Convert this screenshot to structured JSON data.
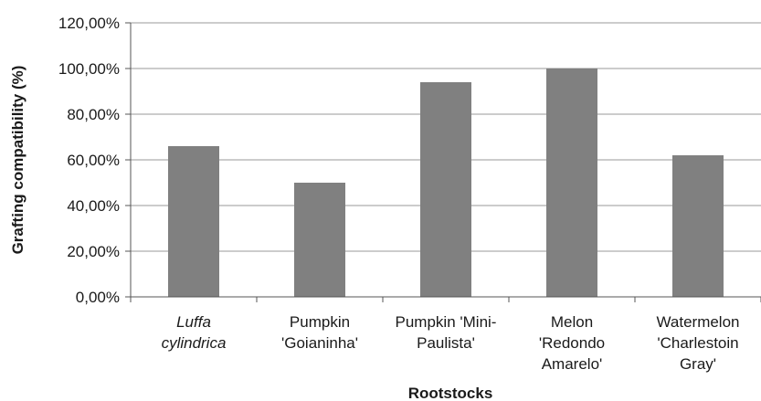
{
  "chart_data": {
    "type": "bar",
    "title": "",
    "xlabel": "Rootstocks",
    "ylabel": "Grafting compatibility (%)",
    "ylim": [
      0,
      120
    ],
    "yticks": [
      "0,00%",
      "20,00%",
      "40,00%",
      "60,00%",
      "80,00%",
      "100,00%",
      "120,00%"
    ],
    "categories": [
      [
        "Luffa",
        "cylindrica"
      ],
      [
        "Pumpkin",
        "'Goianinha'"
      ],
      [
        "Pumpkin 'Mini-",
        "Paulista'"
      ],
      [
        "Melon",
        "'Redondo",
        "Amarelo'"
      ],
      [
        "Watermelon",
        "'Charlestoin",
        "Gray'"
      ]
    ],
    "italic_categories": [
      0
    ],
    "values": [
      66,
      50,
      94,
      100,
      62
    ],
    "grid": true,
    "legend": "none",
    "colors": {
      "bar": "#808080",
      "grid": "#9a9a9a",
      "axis": "#555555"
    }
  }
}
